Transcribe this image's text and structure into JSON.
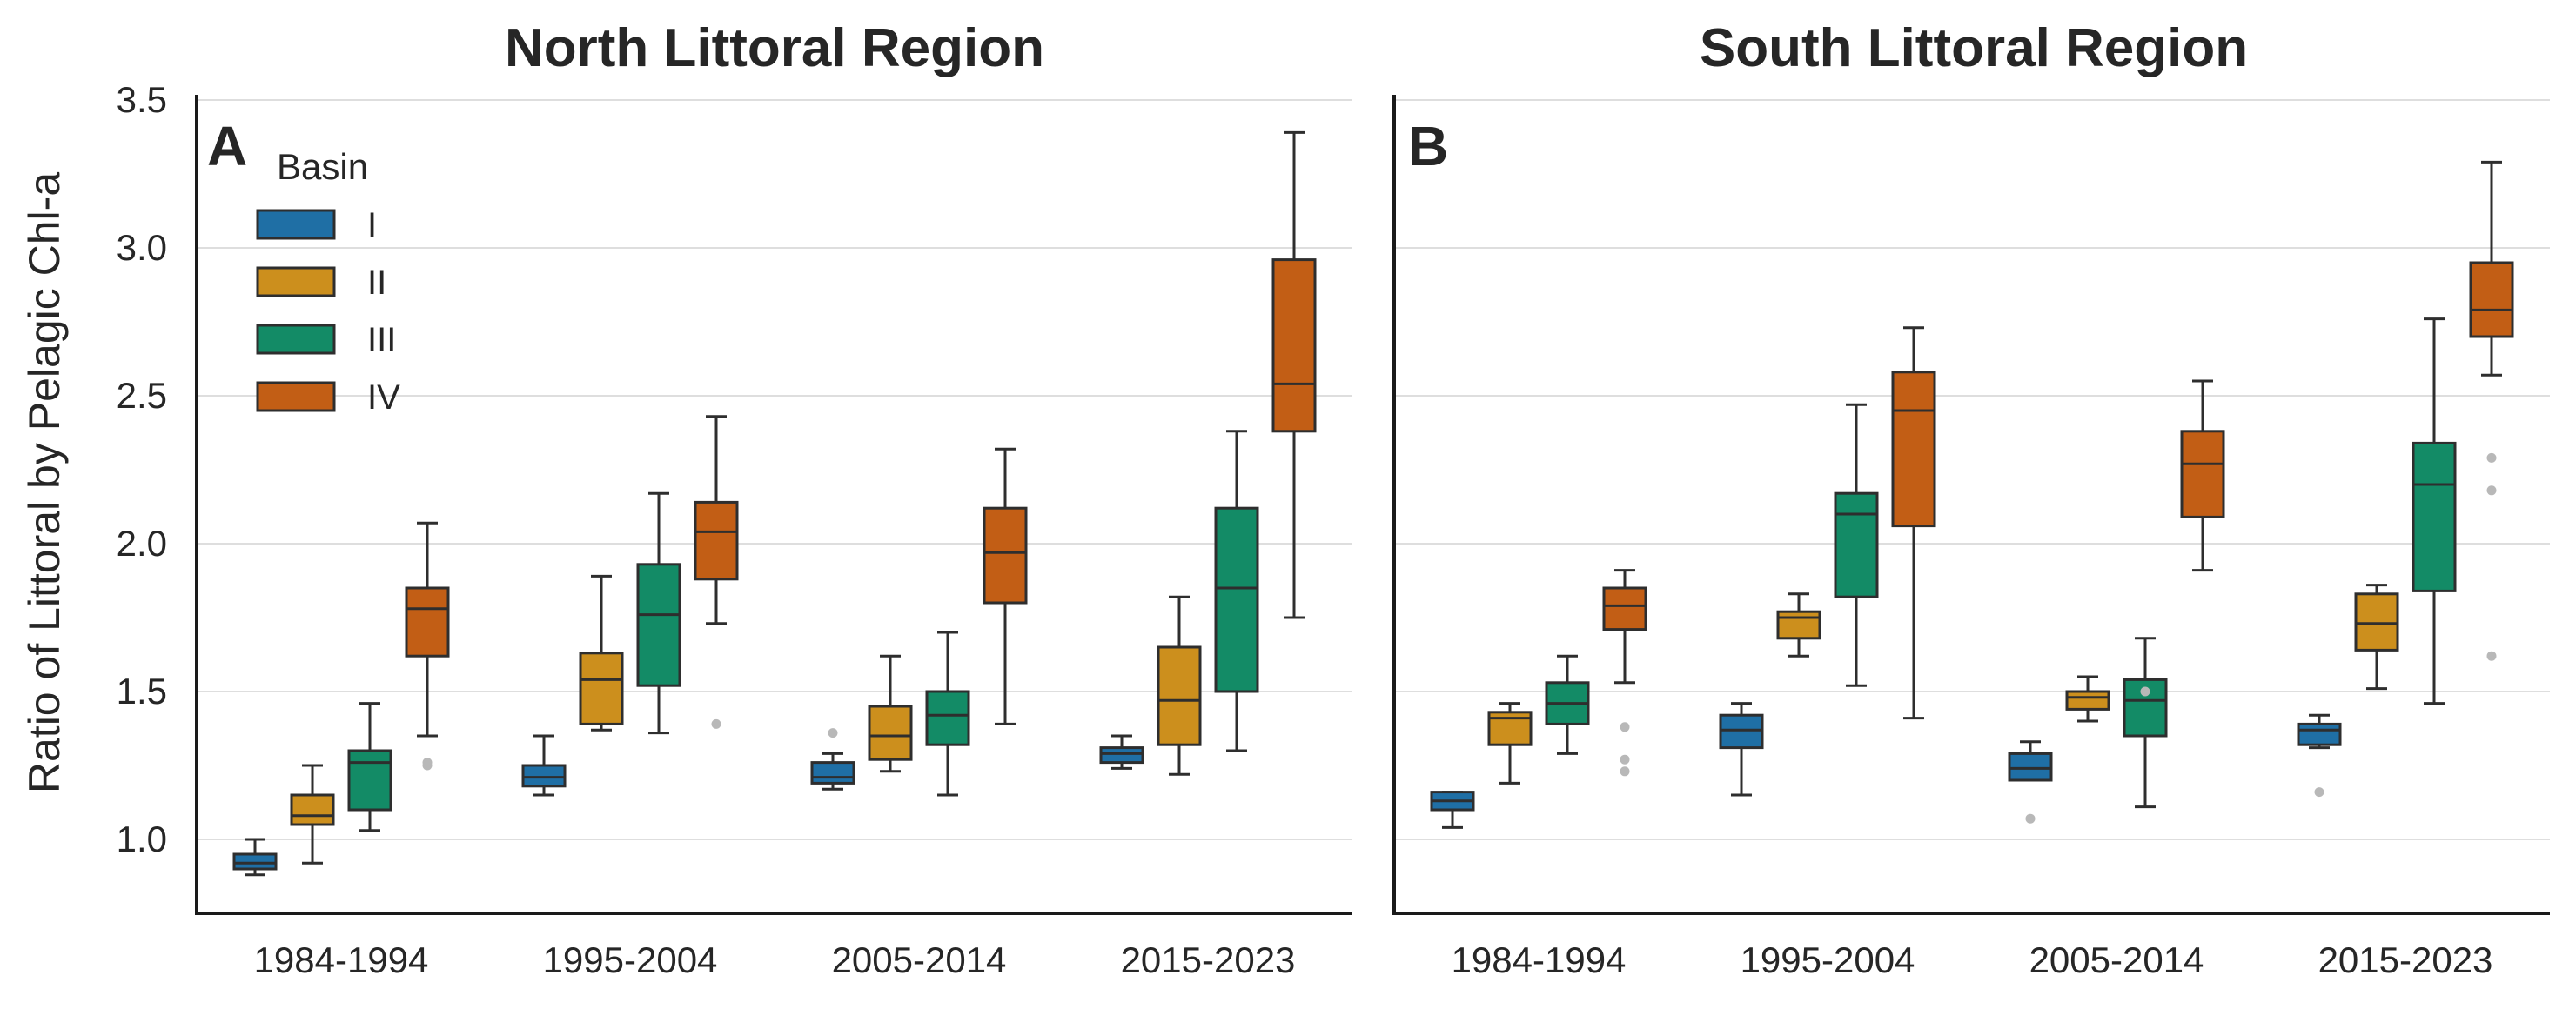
{
  "figure": {
    "ylabel": "Ratio of Littoral by Pelagic Chl-a"
  },
  "legend": {
    "title": "Basin",
    "entries": [
      "I",
      "II",
      "III",
      "IV"
    ]
  },
  "colors": {
    "I": "#1f6fa5",
    "II": "#cc8f1d",
    "III": "#138b66",
    "IV": "#c25e15",
    "grid": "#dedede",
    "outlier": "#b8b8b8",
    "stroke": "#2e2e2e"
  },
  "chart_data": [
    {
      "type": "box",
      "panel": "A",
      "title": "North Littoral Region",
      "xlabel": "",
      "ylabel": "Ratio of Littoral by Pelagic Chl-a",
      "ylim": [
        0.75,
        3.5
      ],
      "yticks": [
        "1.0",
        "1.5",
        "2.0",
        "2.5",
        "3.0",
        "3.5"
      ],
      "grid": "horizontal",
      "legend_position": "top-left",
      "categories": [
        "1984-1994",
        "1995-2004",
        "2005-2014",
        "2015-2023"
      ],
      "series": [
        {
          "name": "I",
          "boxes": [
            {
              "whislo": 0.88,
              "q1": 0.9,
              "med": 0.92,
              "q3": 0.95,
              "whishi": 1.0,
              "fliers": []
            },
            {
              "whislo": 1.15,
              "q1": 1.18,
              "med": 1.21,
              "q3": 1.25,
              "whishi": 1.35,
              "fliers": []
            },
            {
              "whislo": 1.17,
              "q1": 1.19,
              "med": 1.21,
              "q3": 1.26,
              "whishi": 1.29,
              "fliers": [
                1.36
              ]
            },
            {
              "whislo": 1.24,
              "q1": 1.26,
              "med": 1.29,
              "q3": 1.31,
              "whishi": 1.35,
              "fliers": []
            }
          ]
        },
        {
          "name": "II",
          "boxes": [
            {
              "whislo": 0.92,
              "q1": 1.05,
              "med": 1.08,
              "q3": 1.15,
              "whishi": 1.25,
              "fliers": []
            },
            {
              "whislo": 1.37,
              "q1": 1.39,
              "med": 1.54,
              "q3": 1.63,
              "whishi": 1.89,
              "fliers": []
            },
            {
              "whislo": 1.23,
              "q1": 1.27,
              "med": 1.35,
              "q3": 1.45,
              "whishi": 1.62,
              "fliers": []
            },
            {
              "whislo": 1.22,
              "q1": 1.32,
              "med": 1.47,
              "q3": 1.65,
              "whishi": 1.82,
              "fliers": []
            }
          ]
        },
        {
          "name": "III",
          "boxes": [
            {
              "whislo": 1.03,
              "q1": 1.1,
              "med": 1.26,
              "q3": 1.3,
              "whishi": 1.46,
              "fliers": []
            },
            {
              "whislo": 1.36,
              "q1": 1.52,
              "med": 1.76,
              "q3": 1.93,
              "whishi": 2.17,
              "fliers": []
            },
            {
              "whislo": 1.15,
              "q1": 1.32,
              "med": 1.42,
              "q3": 1.5,
              "whishi": 1.7,
              "fliers": []
            },
            {
              "whislo": 1.3,
              "q1": 1.5,
              "med": 1.85,
              "q3": 2.12,
              "whishi": 2.38,
              "fliers": []
            }
          ]
        },
        {
          "name": "IV",
          "boxes": [
            {
              "whislo": 1.35,
              "q1": 1.62,
              "med": 1.78,
              "q3": 1.85,
              "whishi": 2.07,
              "fliers": [
                1.25,
                1.26
              ]
            },
            {
              "whislo": 1.73,
              "q1": 1.88,
              "med": 2.04,
              "q3": 2.14,
              "whishi": 2.43,
              "fliers": [
                1.39
              ]
            },
            {
              "whislo": 1.39,
              "q1": 1.8,
              "med": 1.97,
              "q3": 2.12,
              "whishi": 2.32,
              "fliers": []
            },
            {
              "whislo": 1.75,
              "q1": 2.38,
              "med": 2.54,
              "q3": 2.96,
              "whishi": 3.39,
              "fliers": []
            }
          ]
        }
      ]
    },
    {
      "type": "box",
      "panel": "B",
      "title": "South Littoral Region",
      "xlabel": "",
      "ylabel": "",
      "ylim": [
        0.75,
        3.5
      ],
      "grid": "horizontal",
      "categories": [
        "1984-1994",
        "1995-2004",
        "2005-2014",
        "2015-2023"
      ],
      "series": [
        {
          "name": "I",
          "boxes": [
            {
              "whislo": 1.04,
              "q1": 1.1,
              "med": 1.13,
              "q3": 1.16,
              "whishi": 1.16,
              "fliers": []
            },
            {
              "whislo": 1.15,
              "q1": 1.31,
              "med": 1.37,
              "q3": 1.42,
              "whishi": 1.46,
              "fliers": []
            },
            {
              "whislo": 1.2,
              "q1": 1.2,
              "med": 1.24,
              "q3": 1.29,
              "whishi": 1.33,
              "fliers": [
                1.07
              ]
            },
            {
              "whislo": 1.31,
              "q1": 1.32,
              "med": 1.37,
              "q3": 1.39,
              "whishi": 1.42,
              "fliers": [
                1.16
              ]
            }
          ]
        },
        {
          "name": "II",
          "boxes": [
            {
              "whislo": 1.19,
              "q1": 1.32,
              "med": 1.41,
              "q3": 1.43,
              "whishi": 1.46,
              "fliers": []
            },
            {
              "whislo": 1.62,
              "q1": 1.68,
              "med": 1.75,
              "q3": 1.77,
              "whishi": 1.83,
              "fliers": []
            },
            {
              "whislo": 1.4,
              "q1": 1.44,
              "med": 1.48,
              "q3": 1.5,
              "whishi": 1.55,
              "fliers": []
            },
            {
              "whislo": 1.51,
              "q1": 1.64,
              "med": 1.73,
              "q3": 1.83,
              "whishi": 1.86,
              "fliers": []
            }
          ]
        },
        {
          "name": "III",
          "boxes": [
            {
              "whislo": 1.29,
              "q1": 1.39,
              "med": 1.46,
              "q3": 1.53,
              "whishi": 1.62,
              "fliers": []
            },
            {
              "whislo": 1.52,
              "q1": 1.82,
              "med": 2.1,
              "q3": 2.17,
              "whishi": 2.47,
              "fliers": []
            },
            {
              "whislo": 1.11,
              "q1": 1.35,
              "med": 1.47,
              "q3": 1.54,
              "whishi": 1.68,
              "fliers": [
                1.5
              ]
            },
            {
              "whislo": 1.46,
              "q1": 1.84,
              "med": 2.2,
              "q3": 2.34,
              "whishi": 2.76,
              "fliers": []
            }
          ]
        },
        {
          "name": "IV",
          "boxes": [
            {
              "whislo": 1.53,
              "q1": 1.71,
              "med": 1.79,
              "q3": 1.85,
              "whishi": 1.91,
              "fliers": [
                1.23,
                1.27,
                1.38
              ]
            },
            {
              "whislo": 1.41,
              "q1": 2.06,
              "med": 2.45,
              "q3": 2.58,
              "whishi": 2.73,
              "fliers": []
            },
            {
              "whislo": 1.91,
              "q1": 2.09,
              "med": 2.27,
              "q3": 2.38,
              "whishi": 2.55,
              "fliers": []
            },
            {
              "whislo": 2.57,
              "q1": 2.7,
              "med": 2.79,
              "q3": 2.95,
              "whishi": 3.29,
              "fliers": [
                1.62,
                2.18,
                2.29
              ]
            }
          ]
        }
      ]
    }
  ]
}
